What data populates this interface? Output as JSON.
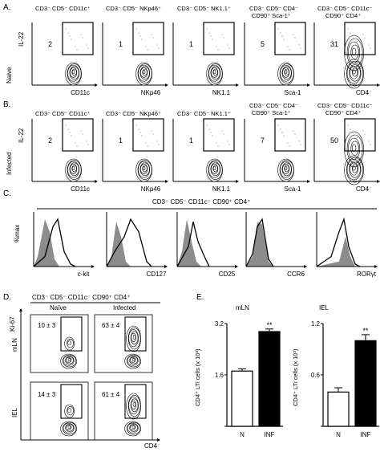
{
  "panels": {
    "A": "A.",
    "B": "B.",
    "C": "C.",
    "D": "D.",
    "E": "E."
  },
  "row_labels": {
    "naive": "Naive",
    "infected": "Infected"
  },
  "rowA": {
    "titles": [
      "CD3⁻ CD5⁻ CD11c⁺",
      "CD3⁻ CD5⁻ NKp46⁺",
      "CD3⁻ CD5⁻ NK1.1⁺",
      "CD3⁻ CD5⁻ CD4⁻",
      "CD90⁺ Sca-1⁺",
      "CD3⁻ CD5⁻ CD11c⁻",
      "CD90⁺ CD4⁺"
    ],
    "y_label": "IL-22",
    "x_labels": [
      "CD11c",
      "NKp46",
      "NK1.1",
      "Sca-1",
      "CD4"
    ],
    "gate_values": [
      "2",
      "1",
      "1",
      "5",
      "31"
    ]
  },
  "rowB": {
    "titles": [
      "CD3⁻ CD5⁻ CD11c⁺",
      "CD3⁻ CD5⁻ NKp46⁺",
      "CD3⁻ CD5⁻ NK1.1⁺",
      "CD3⁻ CD5⁻ CD4⁻",
      "CD90⁺ Sca-1⁺",
      "CD3⁻ CD5⁻ CD11c⁻",
      "CD90⁺ CD4⁺"
    ],
    "y_label": "IL-22",
    "x_labels": [
      "CD11c",
      "NKp46",
      "NK1.1",
      "Sca-1",
      "CD4"
    ],
    "gate_values": [
      "2",
      "1",
      "1",
      "7",
      "50"
    ]
  },
  "rowC": {
    "title": "CD3⁻ CD5⁻ CD11c⁻ CD90⁺ CD4⁺",
    "y_label": "%max",
    "x_labels": [
      "c-kit",
      "CD127",
      "CD25",
      "CCR6",
      "RORγt"
    ]
  },
  "rowD": {
    "title": "CD3⁻ CD5⁻ CD11c⁻ CD90⁺ CD4⁺",
    "col_labels": [
      "Naïve",
      "Infected"
    ],
    "row_labels": [
      "mLN",
      "IEL"
    ],
    "y_label": "Ki-67",
    "x_label": "CD4",
    "values": [
      [
        "10 ± 3",
        "63 ± 4"
      ],
      [
        "14 ± 3",
        "61 ± 4"
      ]
    ]
  },
  "rowE": {
    "y_label": "CD4⁺ LTi cells (x 10³)",
    "significance": "**",
    "charts": [
      {
        "title": "mLN",
        "categories": [
          "N",
          "INF"
        ],
        "ticks": [
          "1.6",
          "3.2"
        ]
      },
      {
        "title": "IEL",
        "categories": [
          "N",
          "INF"
        ],
        "ticks": [
          "0.6",
          "1.2"
        ]
      }
    ]
  },
  "chart_data": [
    {
      "type": "bar",
      "title": "mLN",
      "categories": [
        "N",
        "INF"
      ],
      "values": [
        1.72,
        2.95
      ],
      "errors": [
        0.07,
        0.08
      ],
      "ylabel": "CD4⁺ LTi cells (x 10³)",
      "ylim": [
        0,
        3.2
      ],
      "colors": [
        "#ffffff",
        "#000000"
      ]
    },
    {
      "type": "bar",
      "title": "IEL",
      "categories": [
        "N",
        "INF"
      ],
      "values": [
        0.4,
        1.0
      ],
      "errors": [
        0.05,
        0.07
      ],
      "ylabel": "CD4⁺ LTi cells (x 10³)",
      "ylim": [
        0,
        1.2
      ],
      "colors": [
        "#ffffff",
        "#000000"
      ]
    }
  ]
}
